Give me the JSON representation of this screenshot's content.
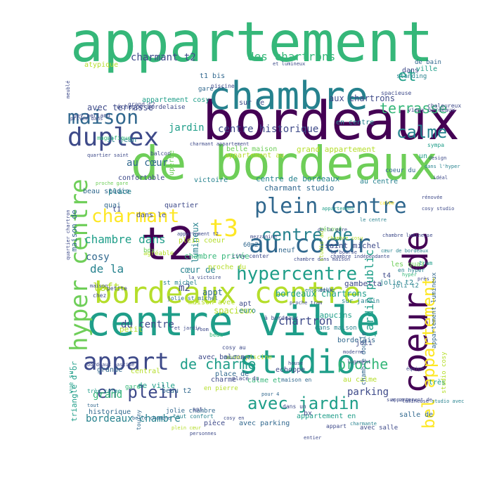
{
  "colors": {
    "dark_purple": "#440154",
    "indigo": "#3e4a89",
    "teal_blue": "#31688e",
    "teal": "#26828e",
    "green_teal": "#1f9e89",
    "green": "#35b779",
    "light_green": "#6ece58",
    "yellow_green": "#b5de2b",
    "yellow": "#fde725"
  },
  "words": [
    {
      "text": "appartement"
    },
    {
      "text": "bordeaux"
    },
    {
      "text": "de bordeaux"
    },
    {
      "text": "chambre"
    },
    {
      "text": "centre ville"
    },
    {
      "text": "t2"
    },
    {
      "text": "coeur de"
    },
    {
      "text": "bordeaux centre"
    },
    {
      "text": "studio"
    },
    {
      "text": "au coeur"
    },
    {
      "text": "plein centre"
    },
    {
      "text": "hyper centre"
    },
    {
      "text": "duplex"
    },
    {
      "text": "maison"
    },
    {
      "text": "appart"
    },
    {
      "text": "t3"
    },
    {
      "text": "charmant"
    },
    {
      "text": "hypercentre"
    },
    {
      "text": "centre de"
    },
    {
      "text": "calme"
    },
    {
      "text": "terrasse"
    },
    {
      "text": "bel appartement"
    },
    {
      "text": "en plein"
    },
    {
      "text": "avec jardin"
    },
    {
      "text": "proche"
    },
    {
      "text": "de charme"
    },
    {
      "text": "et"
    },
    {
      "text": "des chartrons"
    },
    {
      "text": "charmant t2"
    },
    {
      "text": "centre historique"
    },
    {
      "text": "chambre dans"
    },
    {
      "text": "jardin"
    },
    {
      "text": "avec terrasse"
    },
    {
      "text": "aux chartrons"
    },
    {
      "text": "chartron"
    },
    {
      "text": "du centre"
    },
    {
      "text": "parking"
    },
    {
      "text": "bordeaux chambre"
    },
    {
      "text": "au cœur"
    },
    {
      "text": "loft"
    },
    {
      "text": "de la"
    },
    {
      "text": "cosy"
    },
    {
      "text": "grand"
    },
    {
      "text": "m2"
    },
    {
      "text": "jardin public"
    },
    {
      "text": "lumineux"
    },
    {
      "text": "atypique"
    },
    {
      "text": "appartement cosy"
    },
    {
      "text": "en centre"
    },
    {
      "text": "cœur de"
    },
    {
      "text": "bordeaux chartrons"
    },
    {
      "text": "centre de bordeaux"
    },
    {
      "text": "charmant studio"
    },
    {
      "text": "chambre privée"
    },
    {
      "text": "spacieux"
    },
    {
      "text": "grand appartement"
    },
    {
      "text": "belle maison"
    },
    {
      "text": "triangle d'or"
    },
    {
      "text": "maison de"
    },
    {
      "text": "confortable"
    },
    {
      "text": "beau studio"
    },
    {
      "text": "saint michel"
    },
    {
      "text": "capucins"
    },
    {
      "text": "gambetta"
    },
    {
      "text": "victoire"
    },
    {
      "text": "les quai"
    },
    {
      "text": "plein coeur"
    },
    {
      "text": "st jean"
    },
    {
      "text": "quartier"
    },
    {
      "text": "superbe"
    },
    {
      "text": "petit"
    },
    {
      "text": "dans le"
    },
    {
      "text": "place"
    },
    {
      "text": "quai"
    },
    {
      "text": "t1"
    },
    {
      "text": "maison avec"
    },
    {
      "text": "avec balcon"
    },
    {
      "text": "de ville"
    },
    {
      "text": "historique"
    },
    {
      "text": "charme"
    },
    {
      "text": "echoppe"
    },
    {
      "text": "calme et"
    },
    {
      "text": "au calme"
    },
    {
      "text": "très"
    },
    {
      "text": "jolie t2"
    },
    {
      "text": "appt"
    },
    {
      "text": "apt"
    },
    {
      "text": "euro"
    },
    {
      "text": "bordelais"
    },
    {
      "text": "avec parking"
    },
    {
      "text": "appartement en"
    },
    {
      "text": "pièce"
    },
    {
      "text": "bx"
    },
    {
      "text": "neuf"
    },
    {
      "text": "t4"
    },
    {
      "text": "joli t2"
    },
    {
      "text": "rénové"
    },
    {
      "text": "studio cosy"
    },
    {
      "text": "appartement lumineux"
    },
    {
      "text": "appartement au"
    },
    {
      "text": "chambre double"
    },
    {
      "text": "dans maison"
    },
    {
      "text": "proche du"
    },
    {
      "text": "agréable"
    },
    {
      "text": "en hyper"
    },
    {
      "text": "magnifique"
    },
    {
      "text": "chaleureux"
    },
    {
      "text": "vieux bordeaux"
    },
    {
      "text": "sur le"
    },
    {
      "text": "gare st"
    },
    {
      "text": "standing"
    },
    {
      "text": "au centre"
    },
    {
      "text": "coeur du"
    },
    {
      "text": "un"
    },
    {
      "text": "dans"
    },
    {
      "text": "de bain"
    },
    {
      "text": "ville"
    },
    {
      "text": "joli"
    },
    {
      "text": "central"
    },
    {
      "text": "grande"
    },
    {
      "text": "vue sur"
    },
    {
      "text": "beau t2"
    },
    {
      "text": "place de"
    },
    {
      "text": "salle de"
    },
    {
      "text": "jolie chambre"
    },
    {
      "text": "en pierre"
    },
    {
      "text": "tout confort"
    },
    {
      "text": "city center"
    },
    {
      "text": "bordeaux bastide"
    },
    {
      "text": "belle chambre"
    },
    {
      "text": "quartier chartron"
    },
    {
      "text": "appartement t2"
    },
    {
      "text": "la victoire"
    },
    {
      "text": "de la gare"
    },
    {
      "text": "piscine"
    },
    {
      "text": "avec piscine"
    },
    {
      "text": "t1 bis"
    },
    {
      "text": "échoppe bordelaise"
    },
    {
      "text": "cosy au"
    },
    {
      "text": "chambre lumineuse"
    },
    {
      "text": "la bourse"
    },
    {
      "text": "chambre indépendante"
    },
    {
      "text": "près"
    },
    {
      "text": "mezzanine"
    },
    {
      "text": "60m2"
    },
    {
      "text": "room"
    },
    {
      "text": "house"
    },
    {
      "text": "bdx"
    },
    {
      "text": "chez"
    },
    {
      "text": "petite"
    },
    {
      "text": "et lumineux"
    },
    {
      "text": "pour 4"
    },
    {
      "text": "quartier saint"
    },
    {
      "text": "st michel"
    },
    {
      "text": "à bordeaux"
    },
    {
      "text": "tram"
    },
    {
      "text": "proche gare"
    },
    {
      "text": "jolie st michel"
    },
    {
      "text": "plein cœur"
    },
    {
      "text": "spacieuse"
    },
    {
      "text": "sympa"
    },
    {
      "text": "neuf avec"
    },
    {
      "text": "le centre"
    },
    {
      "text": "cœur de bordeaux"
    },
    {
      "text": "maison en"
    },
    {
      "text": "appartement de"
    },
    {
      "text": "sur jardin"
    },
    {
      "text": "cosy en"
    },
    {
      "text": "deux"
    },
    {
      "text": "chambre dans maison"
    },
    {
      "text": "beau"
    },
    {
      "text": "calme"
    },
    {
      "text": "design"
    },
    {
      "text": "dans l'hyper"
    },
    {
      "text": "studio au"
    },
    {
      "text": "ensoleillé"
    },
    {
      "text": "charmante"
    },
    {
      "text": "moderne"
    },
    {
      "text": "logement"
    },
    {
      "text": "proche tram"
    },
    {
      "text": "sur cour"
    },
    {
      "text": "dans un"
    },
    {
      "text": "appartement"
    },
    {
      "text": "tourny"
    },
    {
      "text": "place du"
    },
    {
      "text": "chambre cosy"
    },
    {
      "text": "très calme"
    },
    {
      "text": "tout"
    },
    {
      "text": "avec salle"
    },
    {
      "text": "maison"
    },
    {
      "text": "et jardin"
    },
    {
      "text": "studio avec"
    },
    {
      "text": "pey berland"
    },
    {
      "text": "meublé"
    },
    {
      "text": "privée dans"
    },
    {
      "text": "gare"
    },
    {
      "text": "cosy studio"
    },
    {
      "text": "charmant appartement"
    },
    {
      "text": "équipé"
    },
    {
      "text": "rénovée"
    },
    {
      "text": "grand t2"
    },
    {
      "text": "balcon"
    },
    {
      "text": "hyper"
    },
    {
      "text": "entier"
    },
    {
      "text": "lumineuse"
    },
    {
      "text": "personnes"
    },
    {
      "text": "idéal"
    },
    {
      "text": "apt"
    },
    {
      "text": "appart"
    }
  ]
}
